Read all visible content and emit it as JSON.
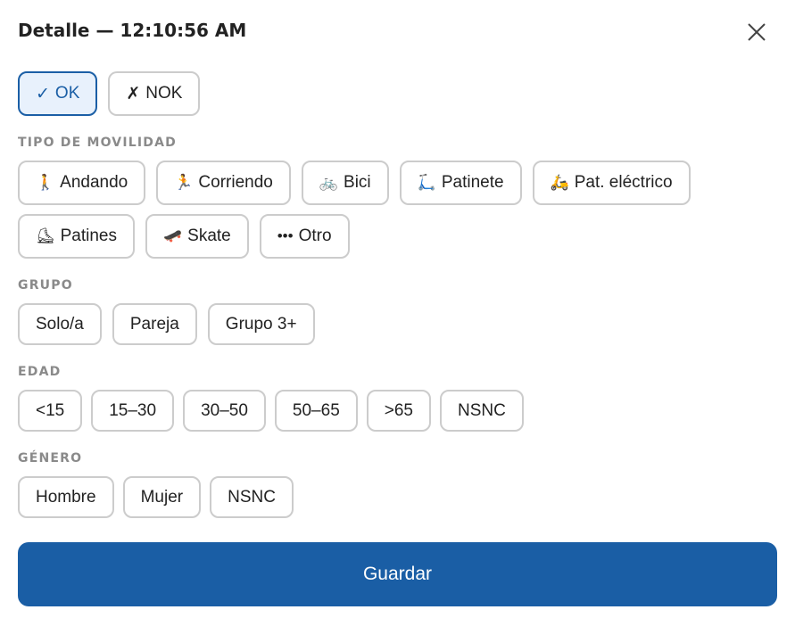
{
  "header": {
    "title": "Detalle — 12:10:56 AM"
  },
  "status": [
    {
      "icon": "✓",
      "label": "OK",
      "selected": true
    },
    {
      "icon": "✗",
      "label": "NOK",
      "selected": false
    }
  ],
  "movilidad": {
    "label": "TIPO DE MOVILIDAD",
    "items": [
      {
        "icon": "🚶",
        "label": "Andando"
      },
      {
        "icon": "🏃",
        "label": "Corriendo"
      },
      {
        "icon": "🚲",
        "label": "Bici"
      },
      {
        "icon": "🛴",
        "label": "Patinete"
      },
      {
        "icon": "🛵",
        "label": "Pat. eléctrico"
      },
      {
        "icon": "⛸",
        "label": "Patines"
      },
      {
        "icon": "🛹",
        "label": "Skate"
      },
      {
        "icon": "•••",
        "label": "Otro"
      }
    ]
  },
  "grupo": {
    "label": "GRUPO",
    "items": [
      "Solo/a",
      "Pareja",
      "Grupo 3+"
    ]
  },
  "edad": {
    "label": "EDAD",
    "items": [
      "<15",
      "15–30",
      "30–50",
      "50–65",
      ">65",
      "NSNC"
    ]
  },
  "genero": {
    "label": "GÉNERO",
    "items": [
      "Hombre",
      "Mujer",
      "NSNC"
    ]
  },
  "save_label": "Guardar",
  "colors": {
    "accent": "#1a5ea5",
    "selected_bg": "#e8f1fc",
    "border": "#cccccc"
  }
}
